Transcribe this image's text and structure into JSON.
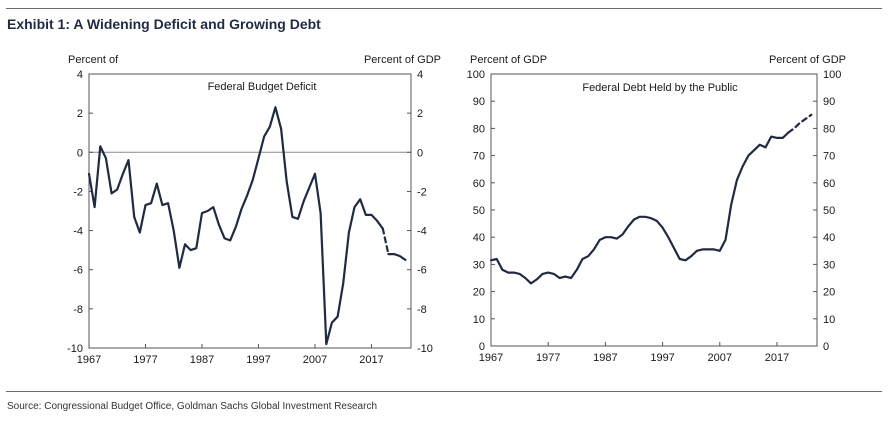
{
  "header": {
    "title": "Exhibit 1: A Widening Deficit and Growing Debt"
  },
  "footer": {
    "source": "Source: Congressional Budget Office, Goldman Sachs Global Investment Research"
  },
  "colors": {
    "line": "#1f2a44",
    "axis": "#555555",
    "zero_line": "#8a8a8a",
    "rule": "#6b6b6b"
  },
  "chart_data": [
    {
      "type": "line",
      "title": "Federal Budget Deficit",
      "ylabel_left": "Percent of",
      "ylabel_right": "Percent of GDP",
      "xlim": [
        1967,
        2024
      ],
      "ylim": [
        -10,
        4
      ],
      "x_ticks": [
        1967,
        1977,
        1987,
        1997,
        2007,
        2017
      ],
      "y_ticks": [
        -10,
        -8,
        -6,
        -4,
        -2,
        0,
        2,
        4
      ],
      "zero_line": true,
      "grid": false,
      "series": [
        {
          "style": "solid",
          "x": [
            1967,
            1968,
            1969,
            1970,
            1971,
            1972,
            1973,
            1974,
            1975,
            1976,
            1977,
            1978,
            1979,
            1980,
            1981,
            1982,
            1983,
            1984,
            1985,
            1986,
            1987,
            1988,
            1989,
            1990,
            1991,
            1992,
            1993,
            1994,
            1995,
            1996,
            1997,
            1998,
            1999,
            2000,
            2001,
            2002,
            2003,
            2004,
            2005,
            2006,
            2007,
            2008,
            2009,
            2010,
            2011,
            2012,
            2013,
            2014,
            2015,
            2016,
            2017,
            2018,
            2019
          ],
          "values": [
            -1.1,
            -2.8,
            0.3,
            -0.3,
            -2.1,
            -1.9,
            -1.1,
            -0.4,
            -3.3,
            -4.1,
            -2.7,
            -2.6,
            -1.6,
            -2.7,
            -2.6,
            -4.0,
            -5.9,
            -4.7,
            -5.0,
            -4.9,
            -3.1,
            -3.0,
            -2.8,
            -3.7,
            -4.4,
            -4.5,
            -3.8,
            -2.9,
            -2.2,
            -1.4,
            -0.3,
            0.8,
            1.3,
            2.3,
            1.2,
            -1.5,
            -3.3,
            -3.4,
            -2.5,
            -1.8,
            -1.1,
            -3.1,
            -9.8,
            -8.7,
            -8.4,
            -6.7,
            -4.1,
            -2.8,
            -2.4,
            -3.2,
            -3.2,
            -3.5,
            -3.9
          ]
        },
        {
          "style": "dashed",
          "x": [
            2019,
            2020
          ],
          "values": [
            -3.9,
            -5.2
          ]
        },
        {
          "style": "solid",
          "x": [
            2020,
            2021,
            2022,
            2023
          ],
          "values": [
            -5.2,
            -5.2,
            -5.3,
            -5.5
          ]
        }
      ]
    },
    {
      "type": "line",
      "title": "Federal Debt Held by the Public",
      "ylabel_left": "Percent of GDP",
      "ylabel_right": "Percent of GDP",
      "xlim": [
        1967,
        2024
      ],
      "ylim": [
        0,
        100
      ],
      "x_ticks": [
        1967,
        1977,
        1987,
        1997,
        2007,
        2017
      ],
      "y_ticks": [
        0,
        10,
        20,
        30,
        40,
        50,
        60,
        70,
        80,
        90,
        100
      ],
      "zero_line": false,
      "grid": false,
      "series": [
        {
          "style": "solid",
          "x": [
            1967,
            1968,
            1969,
            1970,
            1971,
            1972,
            1973,
            1974,
            1975,
            1976,
            1977,
            1978,
            1979,
            1980,
            1981,
            1982,
            1983,
            1984,
            1985,
            1986,
            1987,
            1988,
            1989,
            1990,
            1991,
            1992,
            1993,
            1994,
            1995,
            1996,
            1997,
            1998,
            1999,
            2000,
            2001,
            2002,
            2003,
            2004,
            2005,
            2006,
            2007,
            2008,
            2009,
            2010,
            2011,
            2012,
            2013,
            2014,
            2015,
            2016,
            2017,
            2018,
            2019
          ],
          "values": [
            31.5,
            32,
            28,
            27,
            27,
            26.5,
            25,
            23,
            24.5,
            26.5,
            27,
            26.5,
            25,
            25.5,
            25,
            28,
            32,
            33,
            35.5,
            39,
            40,
            40,
            39.5,
            41,
            44,
            46.5,
            47.5,
            47.5,
            47,
            46,
            43.5,
            40,
            36,
            32,
            31.5,
            33,
            35,
            35.5,
            35.5,
            35.5,
            35,
            39,
            52,
            61,
            66,
            70,
            72,
            74,
            73,
            77,
            76.5,
            76.5,
            78.5
          ]
        },
        {
          "style": "dashed",
          "x": [
            2019,
            2020,
            2021,
            2022,
            2023
          ],
          "values": [
            78.5,
            80,
            82,
            83.5,
            85
          ]
        }
      ]
    }
  ]
}
